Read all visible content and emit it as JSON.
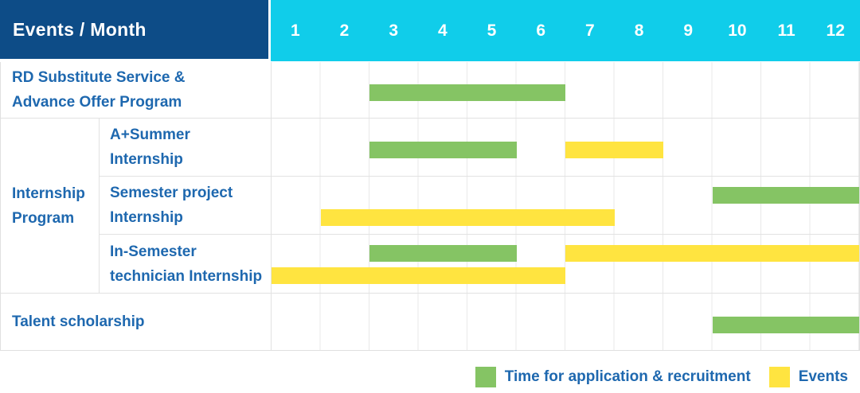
{
  "colors": {
    "navy": "#0d4c87",
    "cyan": "#10cdea",
    "green": "#85c464",
    "yellow": "#ffe440",
    "label_blue": "#1e68af"
  },
  "table": {
    "header": {
      "title": "Events / Month",
      "months": [
        "1",
        "2",
        "3",
        "4",
        "5",
        "6",
        "7",
        "8",
        "9",
        "10",
        "11",
        "12"
      ]
    },
    "body": [
      {
        "kind": "simple",
        "id": "rd-substitute-service-advance-offer-program",
        "label": [
          "RD Substitute Service &",
          "Advance Offer Program"
        ],
        "bars": [
          {
            "color": "green",
            "start": 3,
            "end": 6,
            "lane": "mid"
          }
        ]
      },
      {
        "kind": "group",
        "id": "internship-program",
        "label": [
          "Internship",
          "Program"
        ],
        "rows": [
          {
            "id": "a-plus-summer-internship",
            "label": [
              "A+Summer",
              "Internship"
            ],
            "bars": [
              {
                "color": "green",
                "start": 3,
                "end": 5,
                "lane": "mid"
              },
              {
                "color": "yellow",
                "start": 7,
                "end": 8,
                "lane": "mid"
              }
            ]
          },
          {
            "id": "semester-project-internship",
            "label": [
              "Semester project",
              "Internship"
            ],
            "bars": [
              {
                "color": "green",
                "start": 10,
                "end": 12,
                "lane": "upper"
              },
              {
                "color": "yellow",
                "start": 2,
                "end": 7,
                "lane": "lower"
              }
            ]
          },
          {
            "id": "in-semester-technician-internship",
            "label": [
              "In-Semester",
              "technician Internship"
            ],
            "bars": [
              {
                "color": "green",
                "start": 3,
                "end": 5,
                "lane": "upper"
              },
              {
                "color": "yellow",
                "start": 7,
                "end": 12,
                "lane": "upper"
              },
              {
                "color": "yellow",
                "start": 1,
                "end": 6,
                "lane": "lower"
              }
            ]
          }
        ]
      },
      {
        "kind": "simple",
        "id": "talent-scholarship",
        "label": [
          "Talent scholarship"
        ],
        "bars": [
          {
            "color": "green",
            "start": 10,
            "end": 12,
            "lane": "mid"
          }
        ]
      }
    ]
  },
  "legend": {
    "items": [
      {
        "color": "green",
        "label": "Time for application & recruitment"
      },
      {
        "color": "yellow",
        "label": "Events"
      }
    ]
  },
  "chart_data": {
    "type": "table",
    "subtype": "gantt",
    "title": "Events / Month",
    "x_axis": {
      "label": "Month",
      "ticks": [
        1,
        2,
        3,
        4,
        5,
        6,
        7,
        8,
        9,
        10,
        11,
        12
      ],
      "range": [
        1,
        12
      ]
    },
    "legend_entries": [
      {
        "series": "Time for application & recruitment",
        "color_hex": "#85c464"
      },
      {
        "series": "Events",
        "color_hex": "#ffe440"
      }
    ],
    "rows": [
      {
        "event": "RD Substitute Service & Advance Offer Program",
        "group": null,
        "bars": [
          {
            "series": "Time for application & recruitment",
            "start_month": 3,
            "end_month": 6
          }
        ]
      },
      {
        "event": "A+Summer Internship",
        "group": "Internship Program",
        "bars": [
          {
            "series": "Time for application & recruitment",
            "start_month": 3,
            "end_month": 5
          },
          {
            "series": "Events",
            "start_month": 7,
            "end_month": 8
          }
        ]
      },
      {
        "event": "Semester project Internship",
        "group": "Internship Program",
        "bars": [
          {
            "series": "Time for application & recruitment",
            "start_month": 10,
            "end_month": 12
          },
          {
            "series": "Events",
            "start_month": 2,
            "end_month": 7
          }
        ]
      },
      {
        "event": "In-Semester technician Internship",
        "group": "Internship Program",
        "bars": [
          {
            "series": "Time for application & recruitment",
            "start_month": 3,
            "end_month": 5
          },
          {
            "series": "Events",
            "start_month": 7,
            "end_month": 12
          },
          {
            "series": "Events",
            "start_month": 1,
            "end_month": 6
          }
        ]
      },
      {
        "event": "Talent scholarship",
        "group": null,
        "bars": [
          {
            "series": "Time for application & recruitment",
            "start_month": 10,
            "end_month": 12
          }
        ]
      }
    ]
  }
}
